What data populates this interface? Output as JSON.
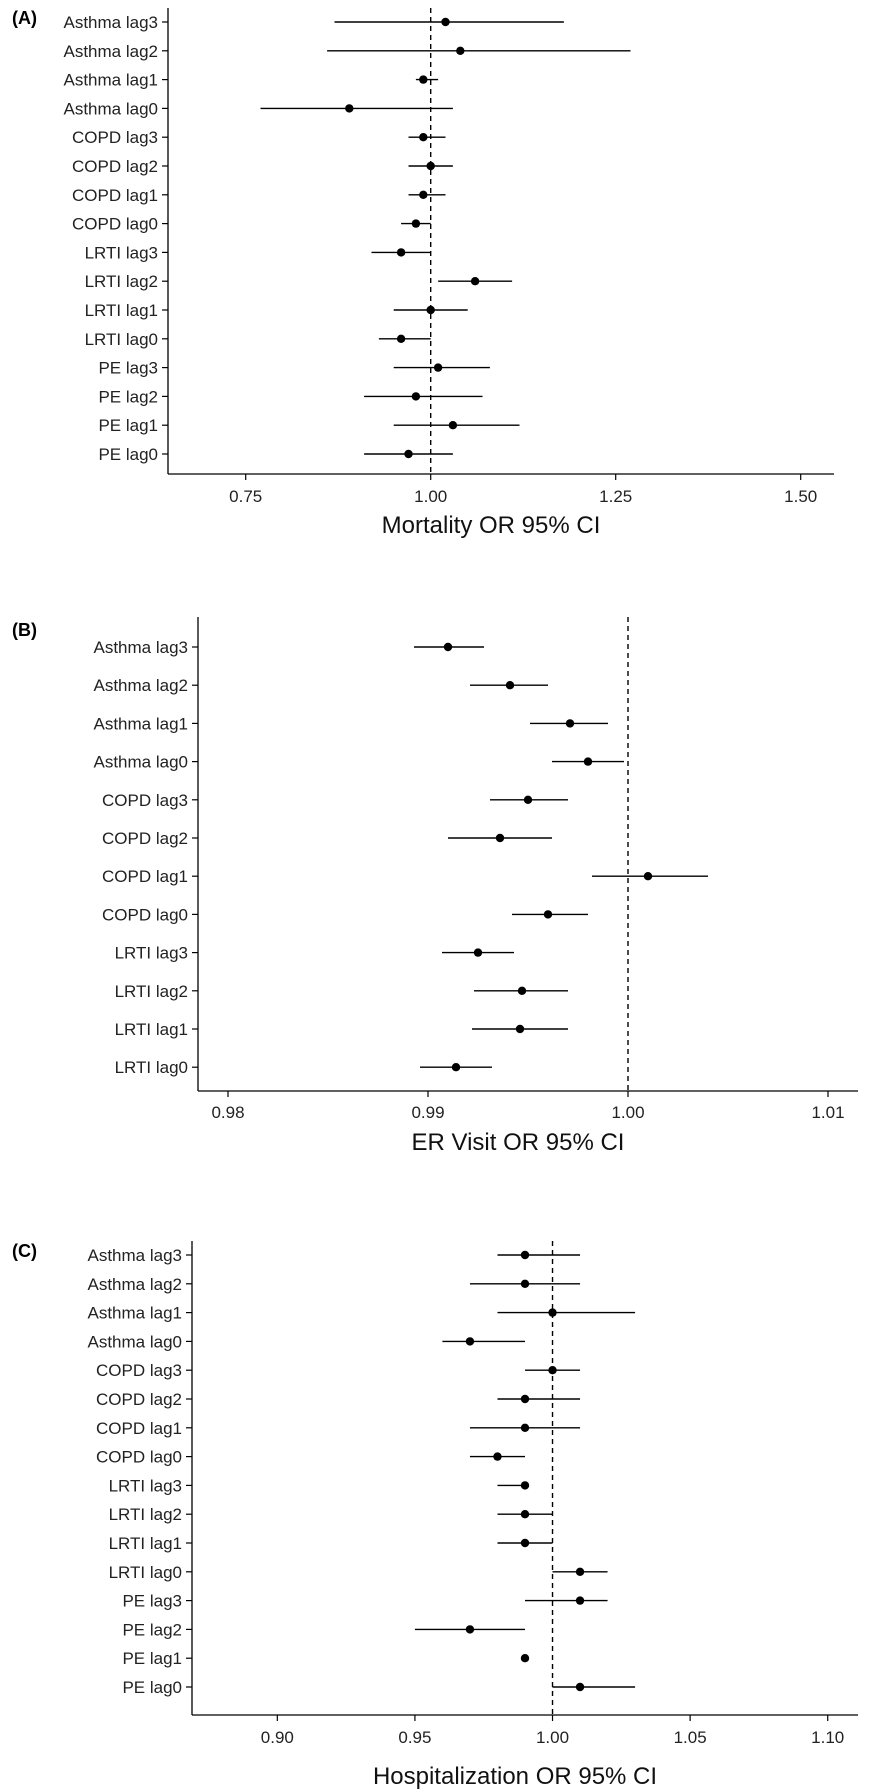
{
  "chart_data": [
    {
      "type": "scatter",
      "subtype": "forest-plot",
      "panel_label": "(A)",
      "xlabel": "Mortality OR 95% CI",
      "ylabel": "",
      "xlim": [
        0.645,
        1.545
      ],
      "xticks": [
        0.75,
        1.0,
        1.25,
        1.5
      ],
      "xtick_labels": [
        "0.75",
        "1.00",
        "1.25",
        "1.50"
      ],
      "reference_line": 1.0,
      "grid": false,
      "categories": [
        "Asthma lag3",
        "Asthma lag2",
        "Asthma lag1",
        "Asthma lag0",
        "COPD lag3",
        "COPD lag2",
        "COPD lag1",
        "COPD lag0",
        "LRTI lag3",
        "LRTI lag2",
        "LRTI lag1",
        "LRTI lag0",
        "PE lag3",
        "PE lag2",
        "PE lag1",
        "PE lag0"
      ],
      "estimates": [
        1.02,
        1.04,
        0.99,
        0.89,
        0.99,
        1.0,
        0.99,
        0.98,
        0.96,
        1.06,
        1.0,
        0.96,
        1.01,
        0.98,
        1.03,
        0.97
      ],
      "ci_lower": [
        0.87,
        0.86,
        0.98,
        0.77,
        0.97,
        0.97,
        0.97,
        0.96,
        0.92,
        1.01,
        0.95,
        0.93,
        0.95,
        0.91,
        0.95,
        0.91
      ],
      "ci_upper": [
        1.18,
        1.27,
        1.01,
        1.03,
        1.02,
        1.03,
        1.02,
        1.0,
        1.0,
        1.11,
        1.05,
        1.0,
        1.08,
        1.07,
        1.12,
        1.03
      ]
    },
    {
      "type": "scatter",
      "subtype": "forest-plot",
      "panel_label": "(B)",
      "xlabel": "ER Visit OR 95% CI",
      "ylabel": "",
      "xlim": [
        0.9785,
        1.0115
      ],
      "xticks": [
        0.98,
        0.99,
        1.0,
        1.01
      ],
      "xtick_labels": [
        "0.98",
        "0.99",
        "1.00",
        "1.01"
      ],
      "reference_line": 1.0,
      "grid": false,
      "categories": [
        "Asthma lag3",
        "Asthma lag2",
        "Asthma lag1",
        "Asthma lag0",
        "COPD lag3",
        "COPD lag2",
        "COPD lag1",
        "COPD lag0",
        "LRTI lag3",
        "LRTI lag2",
        "LRTI lag1",
        "LRTI lag0"
      ],
      "estimates": [
        0.991,
        0.9941,
        0.9971,
        0.998,
        0.995,
        0.9936,
        1.001,
        0.996,
        0.9925,
        0.9947,
        0.9946,
        0.9914
      ],
      "ci_lower": [
        0.9893,
        0.9921,
        0.9951,
        0.9962,
        0.9931,
        0.991,
        0.9982,
        0.9942,
        0.9907,
        0.9923,
        0.9922,
        0.9896
      ],
      "ci_upper": [
        0.9928,
        0.996,
        0.999,
        0.9998,
        0.997,
        0.9962,
        1.004,
        0.998,
        0.9943,
        0.997,
        0.997,
        0.9932
      ]
    },
    {
      "type": "scatter",
      "subtype": "forest-plot",
      "panel_label": "(C)",
      "xlabel": "Hospitalization OR 95% CI",
      "ylabel": "",
      "xlim": [
        0.869,
        1.111
      ],
      "xticks": [
        0.9,
        0.95,
        1.0,
        1.05,
        1.1
      ],
      "xtick_labels": [
        "0.90",
        "0.95",
        "1.00",
        "1.05",
        "1.10"
      ],
      "reference_line": 1.0,
      "grid": false,
      "categories": [
        "Asthma lag3",
        "Asthma lag2",
        "Asthma lag1",
        "Asthma lag0",
        "COPD lag3",
        "COPD lag2",
        "COPD lag1",
        "COPD lag0",
        "LRTI lag3",
        "LRTI lag2",
        "LRTI lag1",
        "LRTI lag0",
        "PE lag3",
        "PE lag2",
        "PE lag1",
        "PE lag0"
      ],
      "estimates": [
        0.99,
        0.99,
        1.0,
        0.97,
        1.0,
        0.99,
        0.99,
        0.98,
        0.99,
        0.99,
        0.99,
        1.01,
        1.01,
        0.97,
        0.99,
        1.01
      ],
      "ci_lower": [
        0.98,
        0.97,
        0.98,
        0.96,
        0.99,
        0.98,
        0.97,
        0.97,
        0.98,
        0.98,
        0.98,
        1.0,
        0.99,
        0.95,
        0.99,
        1.0
      ],
      "ci_upper": [
        1.01,
        1.01,
        1.03,
        0.99,
        1.01,
        1.01,
        1.01,
        0.99,
        0.99,
        1.0,
        1.0,
        1.02,
        1.02,
        0.99,
        0.99,
        1.03
      ]
    }
  ],
  "colors": {
    "marks": "#000000",
    "axis": "#000000",
    "text": "#222222",
    "background": "#ffffff"
  }
}
